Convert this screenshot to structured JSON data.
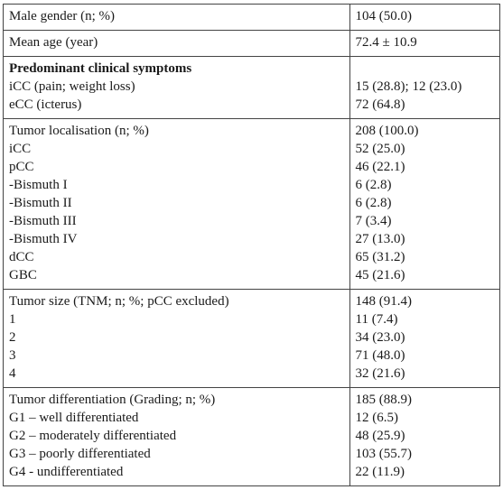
{
  "rows": [
    {
      "left": [
        {
          "text": "Male gender (n; %)"
        }
      ],
      "right": [
        {
          "text": "104 (50.0)"
        }
      ]
    },
    {
      "left": [
        {
          "text": "Mean age (year)"
        }
      ],
      "right": [
        {
          "text": "72.4 ± 10.9"
        }
      ]
    },
    {
      "left": [
        {
          "text": "Predominant clinical symptoms",
          "bold": true
        },
        {
          "text": "iCC (pain; weight loss)"
        },
        {
          "text": "eCC (icterus)"
        }
      ],
      "right_offset_lines": 1,
      "right": [
        {
          "text": "15 (28.8); 12 (23.0)"
        },
        {
          "text": "72 (64.8)"
        }
      ]
    },
    {
      "left": [
        {
          "text": "Tumor localisation (n; %)"
        },
        {
          "text": "iCC"
        },
        {
          "text": "pCC"
        },
        {
          "text": "-Bismuth I"
        },
        {
          "text": "-Bismuth II"
        },
        {
          "text": "-Bismuth III"
        },
        {
          "text": "-Bismuth IV"
        },
        {
          "text": "dCC"
        },
        {
          "text": "GBC"
        }
      ],
      "right": [
        {
          "text": "208 (100.0)"
        },
        {
          "text": "52 (25.0)"
        },
        {
          "text": "46 (22.1)"
        },
        {
          "text": "6 (2.8)"
        },
        {
          "text": "6 (2.8)"
        },
        {
          "text": "7 (3.4)"
        },
        {
          "text": "27 (13.0)"
        },
        {
          "text": "65 (31.2)"
        },
        {
          "text": "45 (21.6)"
        }
      ]
    },
    {
      "left": [
        {
          "text": "Tumor size (TNM; n; %; pCC excluded)"
        },
        {
          "text": "1"
        },
        {
          "text": "2"
        },
        {
          "text": "3"
        },
        {
          "text": "4"
        }
      ],
      "right": [
        {
          "text": "148 (91.4)"
        },
        {
          "text": "11 (7.4)"
        },
        {
          "text": "34 (23.0)"
        },
        {
          "text": "71 (48.0)"
        },
        {
          "text": "32 (21.6)"
        }
      ]
    },
    {
      "left": [
        {
          "text": "Tumor differentiation (Grading; n; %)"
        },
        {
          "text": "G1 – well differentiated"
        },
        {
          "text": "G2 – moderately differentiated"
        },
        {
          "text": "G3 – poorly differentiated"
        },
        {
          "text": "G4 - undifferentiated"
        }
      ],
      "right": [
        {
          "text": "185 (88.9)"
        },
        {
          "text": "12 (6.5)"
        },
        {
          "text": "48 (25.9)"
        },
        {
          "text": "103 (55.7)"
        },
        {
          "text": "22 (11.9)"
        }
      ]
    }
  ]
}
